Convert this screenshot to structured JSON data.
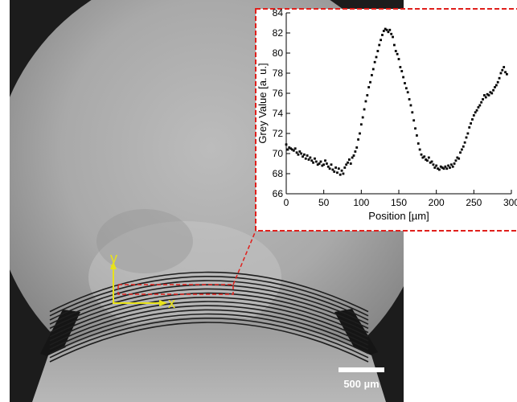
{
  "micrograph": {
    "scale_bar_label": "500 µm",
    "axis_x_label": "x",
    "axis_y_label": "y",
    "axis_color": "#e8e21a",
    "highlight_color": "#e0201c"
  },
  "chart_data": {
    "type": "scatter",
    "title": "",
    "xlabel": "Position [µm]",
    "ylabel": "Grey Value [a. u.]",
    "xlim": [
      0,
      300
    ],
    "ylim": [
      66,
      84
    ],
    "xticks": [
      0,
      50,
      100,
      150,
      200,
      250,
      300
    ],
    "yticks": [
      66,
      68,
      70,
      72,
      74,
      76,
      78,
      80,
      82,
      84
    ],
    "grid": false,
    "legend": "none",
    "marker_color": "#000000",
    "frame_color": "#e0201c",
    "series": [
      {
        "x": [
          0,
          2,
          4,
          6,
          8,
          10,
          12,
          14,
          16,
          18,
          20,
          22,
          24,
          26,
          28,
          30,
          32,
          34,
          36,
          38,
          40,
          42,
          44,
          46,
          48,
          50,
          52,
          54,
          56,
          58,
          60,
          62,
          64,
          66,
          68,
          70,
          72,
          74,
          76,
          78,
          80,
          82,
          84,
          86,
          88,
          90,
          92,
          94,
          96,
          98,
          100,
          102,
          104,
          106,
          108,
          110,
          112,
          114,
          116,
          118,
          120,
          122,
          124,
          126,
          128,
          130,
          132,
          134,
          136,
          138,
          140,
          142,
          144,
          146,
          148,
          150,
          152,
          154,
          156,
          158,
          160,
          162,
          164,
          166,
          168,
          170,
          172,
          174,
          176,
          178,
          180,
          182,
          184,
          186,
          188,
          190,
          192,
          194,
          196,
          198,
          200,
          202,
          204,
          206,
          208,
          210,
          212,
          214,
          216,
          218,
          220,
          222,
          224,
          226,
          228,
          230,
          232,
          234,
          236,
          238,
          240,
          242,
          244,
          246,
          248,
          250,
          252,
          254,
          256,
          258,
          260,
          262,
          264,
          266,
          268,
          270,
          272,
          274,
          276,
          278,
          280,
          282,
          284,
          286,
          288,
          290,
          292,
          294
        ],
        "y": [
          70.9,
          70.4,
          70.6,
          70.5,
          70.4,
          70.3,
          70.5,
          70.1,
          69.9,
          70.2,
          70.0,
          69.7,
          69.9,
          69.5,
          69.8,
          69.4,
          69.6,
          69.3,
          69.1,
          69.5,
          69.2,
          68.9,
          69.0,
          69.2,
          68.8,
          68.9,
          69.3,
          69.0,
          68.7,
          68.5,
          68.9,
          68.4,
          68.2,
          68.6,
          68.1,
          68.5,
          67.9,
          68.3,
          68.0,
          68.6,
          68.9,
          69.1,
          69.4,
          69.0,
          69.6,
          69.8,
          70.2,
          70.6,
          71.4,
          72.0,
          72.9,
          73.6,
          74.4,
          75.2,
          75.8,
          76.6,
          77.1,
          77.8,
          78.4,
          79.1,
          79.6,
          80.2,
          80.8,
          81.3,
          81.8,
          82.2,
          82.4,
          82.3,
          82.1,
          82.3,
          81.9,
          81.6,
          80.8,
          80.2,
          79.9,
          79.4,
          78.6,
          78.2,
          77.6,
          77.0,
          76.5,
          76.1,
          75.4,
          74.8,
          74.1,
          73.3,
          72.5,
          71.8,
          71.0,
          70.4,
          69.9,
          69.6,
          69.7,
          69.4,
          69.3,
          69.6,
          69.1,
          69.2,
          68.9,
          68.6,
          68.8,
          68.5,
          68.4,
          68.7,
          68.6,
          68.5,
          68.7,
          68.5,
          68.8,
          68.6,
          68.9,
          68.7,
          69.0,
          69.3,
          69.6,
          69.5,
          70.1,
          70.4,
          70.7,
          71.1,
          71.6,
          72.0,
          72.6,
          73.0,
          73.4,
          73.8,
          74.1,
          74.3,
          74.6,
          74.8,
          75.1,
          75.4,
          75.8,
          75.6,
          75.9,
          75.8,
          76.1,
          76.0,
          76.3,
          76.6,
          76.8,
          77.1,
          77.5,
          78.0,
          78.3,
          78.6,
          78.1,
          77.9
        ]
      }
    ]
  }
}
